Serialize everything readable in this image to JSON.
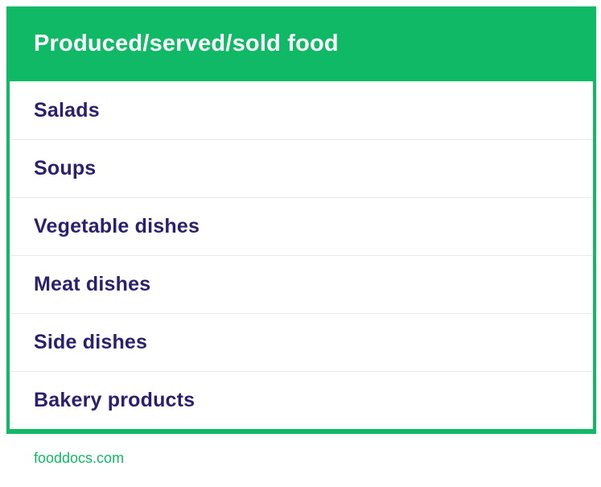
{
  "chart_data": {
    "type": "table",
    "title": "Produced/served/sold food",
    "columns": [
      "Produced/served/sold food"
    ],
    "rows": [
      "Salads",
      "Soups",
      "Vegetable dishes",
      "Meat dishes",
      "Side dishes",
      "Bakery products"
    ],
    "layout": "single-column list table, green header band, thin gray row separators, green outer border"
  },
  "footer": {
    "link": "fooddocs.com"
  },
  "colors": {
    "green": "#0FB965",
    "navy": "#2A216E",
    "separator": "#E9E9EE",
    "header_text": "#FFFFFF",
    "page_bg": "#FFFFFF"
  }
}
